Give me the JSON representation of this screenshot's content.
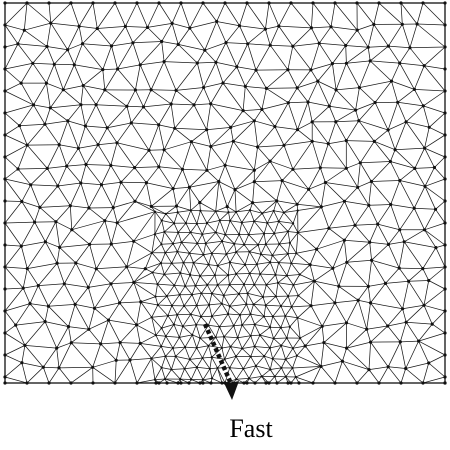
{
  "figure": {
    "arrow_label": "Fast",
    "colors": {
      "edge": "#1a1a1a",
      "node": "#111111",
      "arrow": "#111111",
      "background": "#ffffff"
    }
  }
}
